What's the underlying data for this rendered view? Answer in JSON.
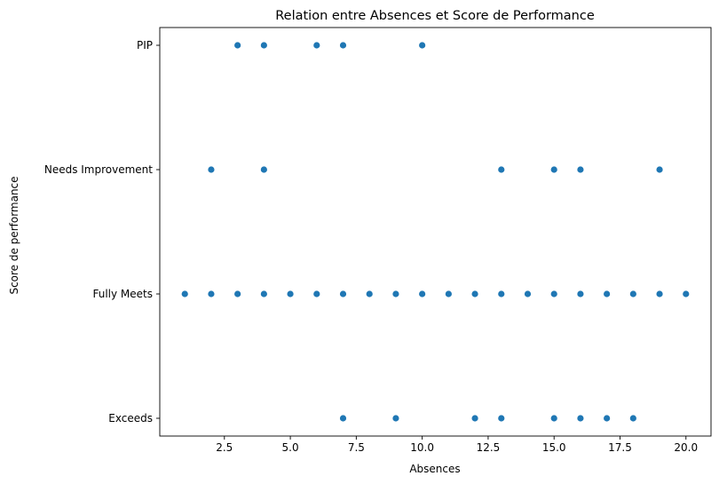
{
  "chart_data": {
    "type": "scatter",
    "title": "Relation entre Absences et Score de Performance",
    "xlabel": "Absences",
    "ylabel": "Score de performance",
    "xlim": [
      0.05,
      20.95
    ],
    "x_ticks": [
      2.5,
      5.0,
      7.5,
      10.0,
      12.5,
      15.0,
      17.5,
      20.0
    ],
    "x_tick_labels": [
      "2.5",
      "5.0",
      "7.5",
      "10.0",
      "12.5",
      "15.0",
      "17.5",
      "20.0"
    ],
    "y_categories": [
      "PIP",
      "Needs Improvement",
      "Fully Meets",
      "Exceeds"
    ],
    "grid": false,
    "legend": "none",
    "marker_color": "#1f77b4",
    "points": [
      {
        "x": 3,
        "y": "PIP"
      },
      {
        "x": 4,
        "y": "PIP"
      },
      {
        "x": 6,
        "y": "PIP"
      },
      {
        "x": 7,
        "y": "PIP"
      },
      {
        "x": 10,
        "y": "PIP"
      },
      {
        "x": 2,
        "y": "Needs Improvement"
      },
      {
        "x": 4,
        "y": "Needs Improvement"
      },
      {
        "x": 13,
        "y": "Needs Improvement"
      },
      {
        "x": 15,
        "y": "Needs Improvement"
      },
      {
        "x": 16,
        "y": "Needs Improvement"
      },
      {
        "x": 19,
        "y": "Needs Improvement"
      },
      {
        "x": 1,
        "y": "Fully Meets"
      },
      {
        "x": 2,
        "y": "Fully Meets"
      },
      {
        "x": 3,
        "y": "Fully Meets"
      },
      {
        "x": 4,
        "y": "Fully Meets"
      },
      {
        "x": 5,
        "y": "Fully Meets"
      },
      {
        "x": 6,
        "y": "Fully Meets"
      },
      {
        "x": 7,
        "y": "Fully Meets"
      },
      {
        "x": 8,
        "y": "Fully Meets"
      },
      {
        "x": 9,
        "y": "Fully Meets"
      },
      {
        "x": 10,
        "y": "Fully Meets"
      },
      {
        "x": 11,
        "y": "Fully Meets"
      },
      {
        "x": 12,
        "y": "Fully Meets"
      },
      {
        "x": 13,
        "y": "Fully Meets"
      },
      {
        "x": 14,
        "y": "Fully Meets"
      },
      {
        "x": 15,
        "y": "Fully Meets"
      },
      {
        "x": 16,
        "y": "Fully Meets"
      },
      {
        "x": 17,
        "y": "Fully Meets"
      },
      {
        "x": 18,
        "y": "Fully Meets"
      },
      {
        "x": 19,
        "y": "Fully Meets"
      },
      {
        "x": 20,
        "y": "Fully Meets"
      },
      {
        "x": 7,
        "y": "Exceeds"
      },
      {
        "x": 9,
        "y": "Exceeds"
      },
      {
        "x": 12,
        "y": "Exceeds"
      },
      {
        "x": 13,
        "y": "Exceeds"
      },
      {
        "x": 15,
        "y": "Exceeds"
      },
      {
        "x": 16,
        "y": "Exceeds"
      },
      {
        "x": 17,
        "y": "Exceeds"
      },
      {
        "x": 18,
        "y": "Exceeds"
      }
    ]
  }
}
